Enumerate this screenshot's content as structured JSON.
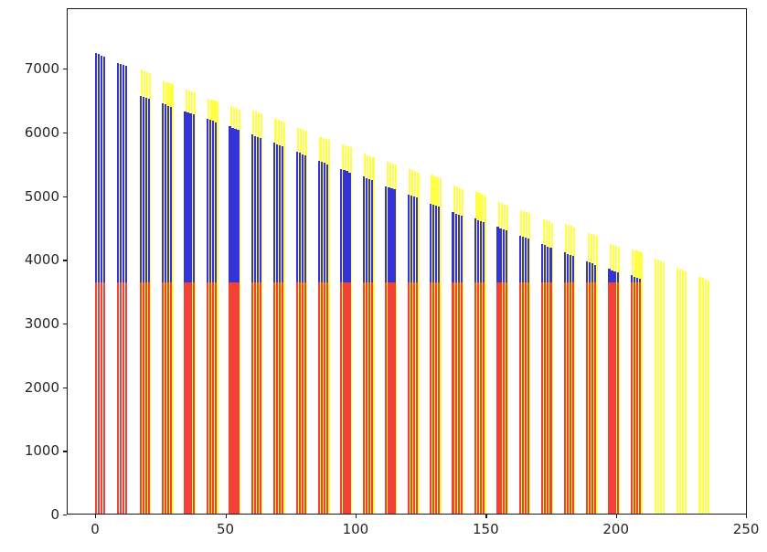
{
  "figure": {
    "background": "#ffffff",
    "axis_color": "#1a1a1a",
    "tick_label_color": "#262626"
  },
  "chart_data": {
    "type": "bar",
    "title": "",
    "xlabel": "",
    "ylabel": "",
    "grid": false,
    "legend": "none",
    "xlim": [
      -10.9,
      250.3
    ],
    "ylim": [
      0,
      7950
    ],
    "x_tick_labels": [
      "0",
      "50",
      "100",
      "150",
      "200",
      "250"
    ],
    "x_tick_values": [
      0,
      50,
      100,
      150,
      200,
      250
    ],
    "y_tick_labels": [
      "0",
      "1000",
      "2000",
      "3000",
      "4000",
      "5000",
      "6000",
      "7000"
    ],
    "y_tick_values": [
      0,
      1000,
      2000,
      3000,
      4000,
      5000,
      6000,
      7000
    ],
    "bars_per_group": 4,
    "bar_width": 0.8,
    "bar_step": 1.07,
    "group_pitch": 8.575,
    "within_group_height_step": 17,
    "group_centers": [
      1.5,
      10.1,
      18.7,
      27.2,
      35.8,
      44.4,
      53.0,
      61.5,
      70.1,
      78.7,
      87.3,
      95.8,
      104.4,
      113.0,
      121.6,
      130.1,
      138.7,
      147.3,
      155.9,
      164.4,
      173.0,
      181.6,
      190.2,
      198.7,
      207.3,
      215.9,
      224.4,
      233.0
    ],
    "series": [
      {
        "name": "yellow",
        "color": "#ffff46",
        "z": 1,
        "dx": 0.5,
        "stagger": 17,
        "values": [
          null,
          null,
          6970,
          6790,
          6660,
          6520,
          6400,
          6330,
          6200,
          6060,
          5920,
          5800,
          5650,
          5530,
          5410,
          5320,
          5150,
          5050,
          4890,
          4770,
          4620,
          4550,
          4410,
          4240,
          4150,
          4000,
          3860,
          3715
        ]
      },
      {
        "name": "blue",
        "color": "#3434d6",
        "z": 2,
        "dx": 0,
        "stagger": 17,
        "values": [
          7230,
          7080,
          6560,
          6440,
          6320,
          6200,
          6080,
          5950,
          5820,
          5680,
          5540,
          5410,
          5290,
          5140,
          5010,
          4870,
          4730,
          4630,
          4500,
          4370,
          4230,
          4100,
          3960,
          3840,
          3740,
          null,
          null,
          null
        ]
      },
      {
        "name": "red",
        "color": "#f04237",
        "z": 3,
        "dx": 0,
        "stagger": 0,
        "values": [
          3630,
          3630,
          3630,
          3630,
          3630,
          3630,
          3630,
          3630,
          3630,
          3630,
          3630,
          3630,
          3630,
          3630,
          3630,
          3630,
          3630,
          3630,
          3630,
          3630,
          3630,
          3630,
          3630,
          3630,
          3630,
          null,
          null,
          null
        ]
      }
    ]
  }
}
